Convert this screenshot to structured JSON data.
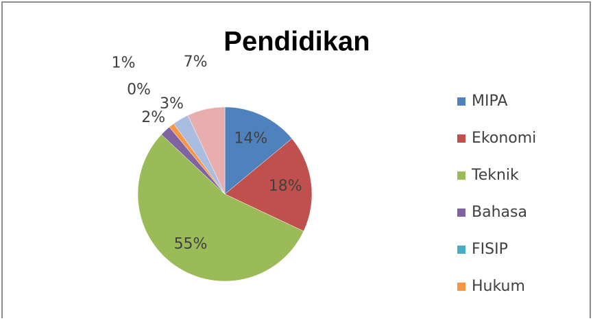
{
  "chart_data": {
    "type": "pie",
    "title": "Pendidikan",
    "categories": [
      "MIPA",
      "Ekonomi",
      "Teknik",
      "Bahasa",
      "FISIP",
      "Hukum",
      null,
      null
    ],
    "values": [
      14,
      18,
      55,
      2,
      0,
      1,
      3,
      7
    ],
    "value_labels": [
      "14%",
      "18%",
      "55%",
      "2%",
      "0%",
      "1%",
      "3%",
      "7%"
    ],
    "colors": [
      "#4f81bd",
      "#c0504d",
      "#9bbb59",
      "#8064a2",
      "#4bacc6",
      "#f79646",
      "#a9bde0",
      "#e8adae"
    ],
    "legend": "right"
  }
}
